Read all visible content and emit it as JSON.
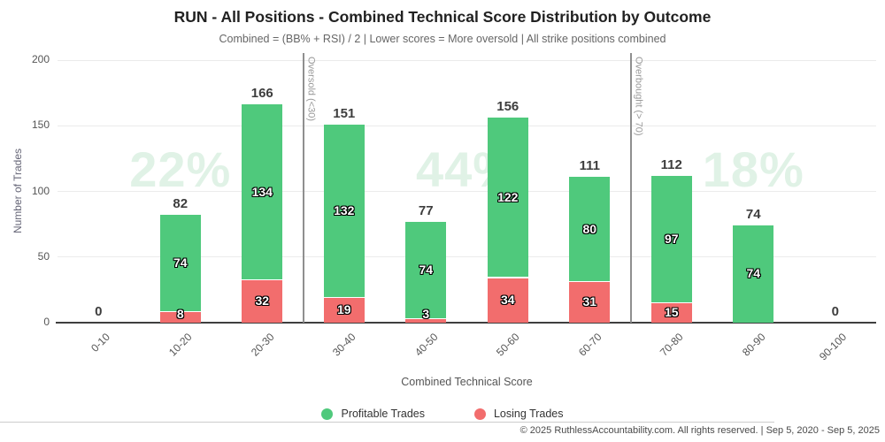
{
  "header": {
    "title": "RUN - All Positions - Combined Technical Score Distribution by Outcome",
    "subtitle": "Combined = (BB% + RSI) / 2 | Lower scores = More oversold | All strike positions combined"
  },
  "chart_data": {
    "type": "bar",
    "stacked": true,
    "title": "RUN - All Positions - Combined Technical Score Distribution by Outcome",
    "xlabel": "Combined Technical Score",
    "ylabel": "Number of Trades",
    "ylim": [
      0,
      200
    ],
    "yticks": [
      0,
      50,
      100,
      150,
      200
    ],
    "grid": true,
    "legend_position": "bottom",
    "categories": [
      "0-10",
      "10-20",
      "20-30",
      "30-40",
      "40-50",
      "50-60",
      "60-70",
      "70-80",
      "80-90",
      "90-100"
    ],
    "series": [
      {
        "name": "Profitable Trades",
        "color": "#4FC97C",
        "values": [
          0,
          74,
          134,
          132,
          74,
          122,
          80,
          97,
          74,
          0
        ]
      },
      {
        "name": "Losing Trades",
        "color": "#F26D6D",
        "values": [
          0,
          8,
          32,
          19,
          3,
          34,
          31,
          15,
          0,
          0
        ]
      }
    ],
    "stack_order_bottom_to_top": [
      "Losing Trades",
      "Profitable Trades"
    ],
    "totals": [
      0,
      82,
      166,
      151,
      77,
      156,
      111,
      112,
      74,
      0
    ],
    "dividers": [
      {
        "at_score": 30,
        "label": "Oversold (<30)"
      },
      {
        "at_score": 70,
        "label": "Overbought (> 70)"
      }
    ],
    "watermarks": [
      {
        "text": "22%",
        "region": [
          0,
          30
        ]
      },
      {
        "text": "44%",
        "region": [
          30,
          70
        ]
      },
      {
        "text": "18%",
        "region": [
          70,
          100
        ]
      }
    ],
    "watermark_color": "#E0F2E6"
  },
  "legend": {
    "items": [
      {
        "label": "Profitable Trades",
        "color": "#4FC97C"
      },
      {
        "label": "Losing Trades",
        "color": "#F26D6D"
      }
    ]
  },
  "footer": {
    "text": "© 2025 RuthlessAccountability.com. All rights reserved. | Sep 5, 2020 - Sep 5, 2025"
  }
}
